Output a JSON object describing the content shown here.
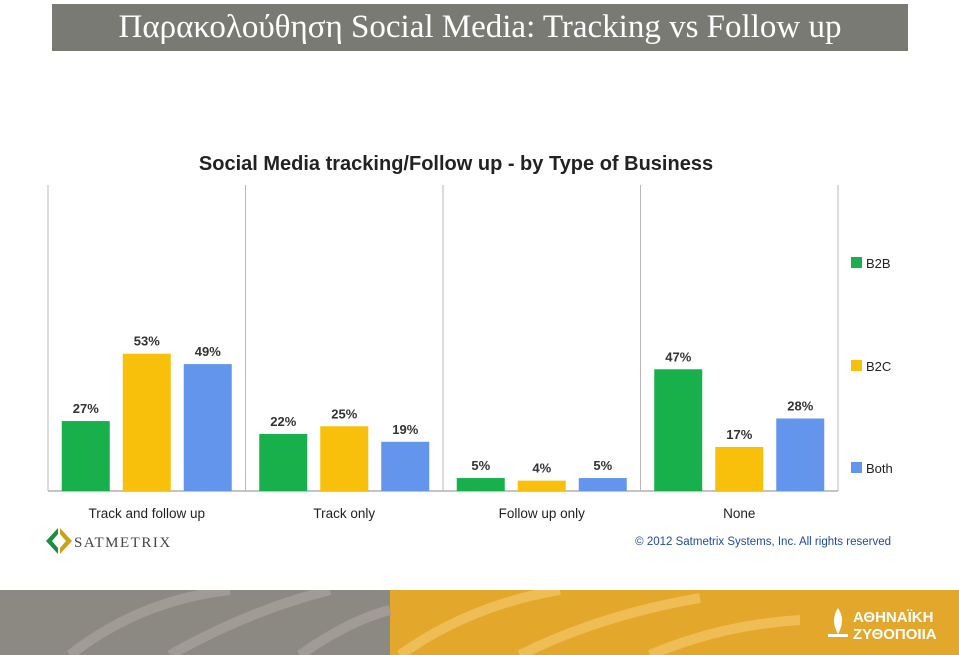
{
  "slide": {
    "title": "Παρακολούθηση Social Media: Tracking vs Follow up"
  },
  "chart_data": {
    "type": "bar",
    "title": "Social Media tracking/Follow up - by Type of Business",
    "categories": [
      "Track and follow up",
      "Track only",
      "Follow up only",
      "None"
    ],
    "series": [
      {
        "name": "B2B",
        "values": [
          27,
          22,
          5,
          47
        ],
        "color": "#18b04a"
      },
      {
        "name": "B2C",
        "values": [
          53,
          25,
          4,
          17
        ],
        "color": "#f9c00b"
      },
      {
        "name": "Both",
        "values": [
          49,
          19,
          5,
          28
        ],
        "color": "#6495ed"
      }
    ],
    "value_suffix": "%",
    "ylim": [
      0,
      60
    ],
    "grid": false,
    "legend_position": "right"
  },
  "branding": {
    "left_logo": "SATMETRIX",
    "copyright": "© 2012 Satmetrix Systems, Inc. All rights reserved",
    "footer_logo_line1": "ΑΘΗΝΑΪΚΗ",
    "footer_logo_line2": "ΖΥΘΟΠΟΙΙΑ"
  },
  "colors": {
    "title_bar": "#7a7a74",
    "footer_grey": "#8c8882",
    "footer_gold": "#e3a82b"
  }
}
